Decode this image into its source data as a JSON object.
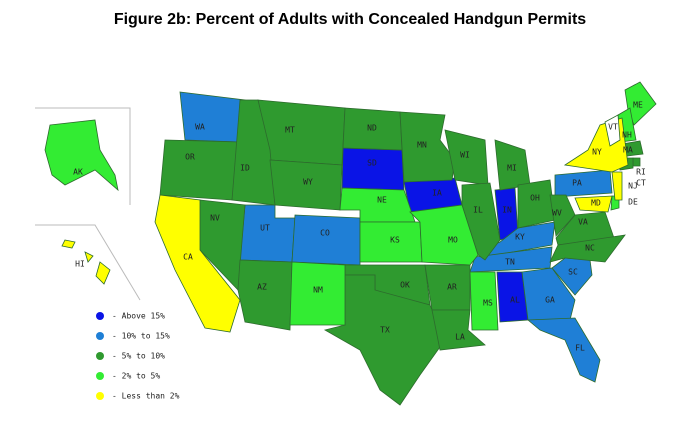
{
  "title": "Figure 2b: Percent of Adults with Concealed Handgun Permits",
  "legend": [
    {
      "label": "- Above 15%",
      "color": "#0a14e6",
      "states": [
        "SD",
        "IA",
        "IN",
        "AL"
      ]
    },
    {
      "label": "- 10% to 15%",
      "color": "#1f7fd6",
      "states": [
        "WA",
        "UT",
        "CO",
        "PA",
        "KY",
        "TN",
        "SC",
        "GA",
        "FL"
      ]
    },
    {
      "label": "- 5% to 10%",
      "color": "#2f9a2f",
      "states": [
        "MT",
        "OR",
        "ID",
        "WY",
        "ND",
        "MN",
        "WI",
        "MI",
        "NV",
        "AZ",
        "OK",
        "TX",
        "AR",
        "LA",
        "IL",
        "OH",
        "WV",
        "VA",
        "NC",
        "MA",
        "RI",
        "CT"
      ]
    },
    {
      "label": "- 2% to 5%",
      "color": "#33ec33",
      "states": [
        "NE",
        "KS",
        "MO",
        "NM",
        "MS",
        "AK",
        "ME",
        "NH",
        "DE"
      ]
    },
    {
      "label": "- Less than 2%",
      "color": "#ffff00",
      "states": [
        "CA",
        "NY",
        "NJ",
        "MD",
        "HI"
      ]
    }
  ],
  "other_states": [
    "VT"
  ]
}
